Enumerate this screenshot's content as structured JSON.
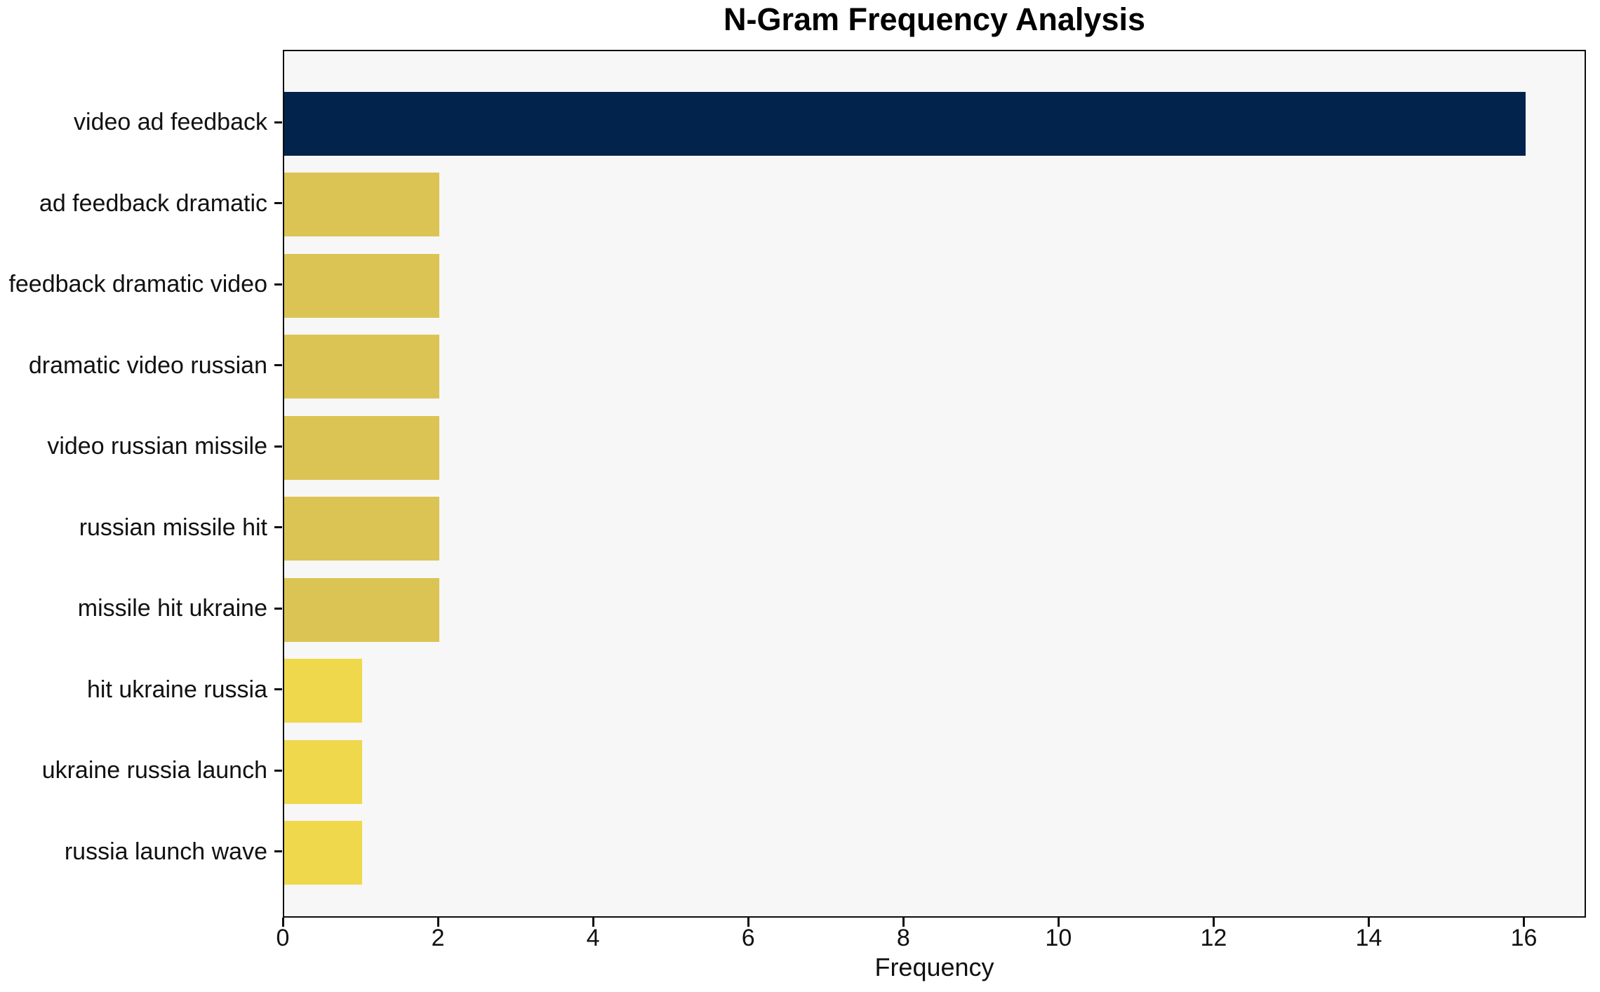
{
  "chart_data": {
    "type": "bar",
    "orientation": "horizontal",
    "title": "N-Gram Frequency Analysis",
    "xlabel": "Frequency",
    "ylabel": "",
    "categories": [
      "video ad feedback",
      "ad feedback dramatic",
      "feedback dramatic video",
      "dramatic video russian",
      "video russian missile",
      "russian missile hit",
      "missile hit ukraine",
      "hit ukraine russia",
      "ukraine russia launch",
      "russia launch wave"
    ],
    "values": [
      16,
      2,
      2,
      2,
      2,
      2,
      2,
      1,
      1,
      1
    ],
    "bar_colors": [
      "#02234C",
      "#DBC453",
      "#DBC453",
      "#DBC453",
      "#DBC453",
      "#DBC453",
      "#DBC453",
      "#EFD84B",
      "#EFD84B",
      "#EFD84B"
    ],
    "xlim": [
      0,
      16.8
    ],
    "xticks": [
      0,
      2,
      4,
      6,
      8,
      10,
      12,
      14,
      16
    ],
    "grid": false,
    "legend": null,
    "plot_background": "#F7F7F7",
    "figure_background": "#FFFFFF",
    "axis_color": "#0D0D0D"
  }
}
